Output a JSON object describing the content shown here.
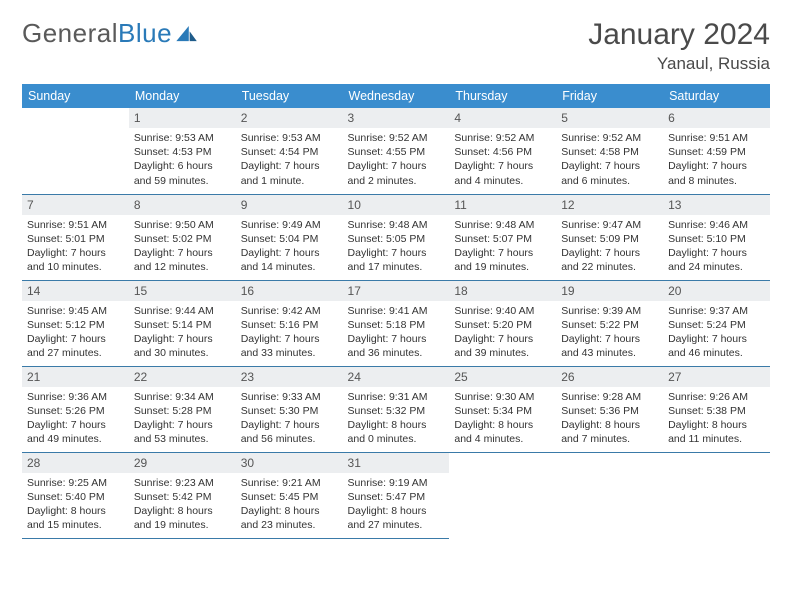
{
  "logo": {
    "text1": "General",
    "text2": "Blue"
  },
  "title": "January 2024",
  "location": "Yanaul, Russia",
  "colors": {
    "header_bg": "#3a8dce",
    "rule": "#3a7aa8",
    "daynum_bg": "#eceef0"
  },
  "weekdays": [
    "Sunday",
    "Monday",
    "Tuesday",
    "Wednesday",
    "Thursday",
    "Friday",
    "Saturday"
  ],
  "weeks": [
    [
      {
        "n": "",
        "sr": "",
        "ss": "",
        "dl": ""
      },
      {
        "n": "1",
        "sr": "Sunrise: 9:53 AM",
        "ss": "Sunset: 4:53 PM",
        "dl": "Daylight: 6 hours and 59 minutes."
      },
      {
        "n": "2",
        "sr": "Sunrise: 9:53 AM",
        "ss": "Sunset: 4:54 PM",
        "dl": "Daylight: 7 hours and 1 minute."
      },
      {
        "n": "3",
        "sr": "Sunrise: 9:52 AM",
        "ss": "Sunset: 4:55 PM",
        "dl": "Daylight: 7 hours and 2 minutes."
      },
      {
        "n": "4",
        "sr": "Sunrise: 9:52 AM",
        "ss": "Sunset: 4:56 PM",
        "dl": "Daylight: 7 hours and 4 minutes."
      },
      {
        "n": "5",
        "sr": "Sunrise: 9:52 AM",
        "ss": "Sunset: 4:58 PM",
        "dl": "Daylight: 7 hours and 6 minutes."
      },
      {
        "n": "6",
        "sr": "Sunrise: 9:51 AM",
        "ss": "Sunset: 4:59 PM",
        "dl": "Daylight: 7 hours and 8 minutes."
      }
    ],
    [
      {
        "n": "7",
        "sr": "Sunrise: 9:51 AM",
        "ss": "Sunset: 5:01 PM",
        "dl": "Daylight: 7 hours and 10 minutes."
      },
      {
        "n": "8",
        "sr": "Sunrise: 9:50 AM",
        "ss": "Sunset: 5:02 PM",
        "dl": "Daylight: 7 hours and 12 minutes."
      },
      {
        "n": "9",
        "sr": "Sunrise: 9:49 AM",
        "ss": "Sunset: 5:04 PM",
        "dl": "Daylight: 7 hours and 14 minutes."
      },
      {
        "n": "10",
        "sr": "Sunrise: 9:48 AM",
        "ss": "Sunset: 5:05 PM",
        "dl": "Daylight: 7 hours and 17 minutes."
      },
      {
        "n": "11",
        "sr": "Sunrise: 9:48 AM",
        "ss": "Sunset: 5:07 PM",
        "dl": "Daylight: 7 hours and 19 minutes."
      },
      {
        "n": "12",
        "sr": "Sunrise: 9:47 AM",
        "ss": "Sunset: 5:09 PM",
        "dl": "Daylight: 7 hours and 22 minutes."
      },
      {
        "n": "13",
        "sr": "Sunrise: 9:46 AM",
        "ss": "Sunset: 5:10 PM",
        "dl": "Daylight: 7 hours and 24 minutes."
      }
    ],
    [
      {
        "n": "14",
        "sr": "Sunrise: 9:45 AM",
        "ss": "Sunset: 5:12 PM",
        "dl": "Daylight: 7 hours and 27 minutes."
      },
      {
        "n": "15",
        "sr": "Sunrise: 9:44 AM",
        "ss": "Sunset: 5:14 PM",
        "dl": "Daylight: 7 hours and 30 minutes."
      },
      {
        "n": "16",
        "sr": "Sunrise: 9:42 AM",
        "ss": "Sunset: 5:16 PM",
        "dl": "Daylight: 7 hours and 33 minutes."
      },
      {
        "n": "17",
        "sr": "Sunrise: 9:41 AM",
        "ss": "Sunset: 5:18 PM",
        "dl": "Daylight: 7 hours and 36 minutes."
      },
      {
        "n": "18",
        "sr": "Sunrise: 9:40 AM",
        "ss": "Sunset: 5:20 PM",
        "dl": "Daylight: 7 hours and 39 minutes."
      },
      {
        "n": "19",
        "sr": "Sunrise: 9:39 AM",
        "ss": "Sunset: 5:22 PM",
        "dl": "Daylight: 7 hours and 43 minutes."
      },
      {
        "n": "20",
        "sr": "Sunrise: 9:37 AM",
        "ss": "Sunset: 5:24 PM",
        "dl": "Daylight: 7 hours and 46 minutes."
      }
    ],
    [
      {
        "n": "21",
        "sr": "Sunrise: 9:36 AM",
        "ss": "Sunset: 5:26 PM",
        "dl": "Daylight: 7 hours and 49 minutes."
      },
      {
        "n": "22",
        "sr": "Sunrise: 9:34 AM",
        "ss": "Sunset: 5:28 PM",
        "dl": "Daylight: 7 hours and 53 minutes."
      },
      {
        "n": "23",
        "sr": "Sunrise: 9:33 AM",
        "ss": "Sunset: 5:30 PM",
        "dl": "Daylight: 7 hours and 56 minutes."
      },
      {
        "n": "24",
        "sr": "Sunrise: 9:31 AM",
        "ss": "Sunset: 5:32 PM",
        "dl": "Daylight: 8 hours and 0 minutes."
      },
      {
        "n": "25",
        "sr": "Sunrise: 9:30 AM",
        "ss": "Sunset: 5:34 PM",
        "dl": "Daylight: 8 hours and 4 minutes."
      },
      {
        "n": "26",
        "sr": "Sunrise: 9:28 AM",
        "ss": "Sunset: 5:36 PM",
        "dl": "Daylight: 8 hours and 7 minutes."
      },
      {
        "n": "27",
        "sr": "Sunrise: 9:26 AM",
        "ss": "Sunset: 5:38 PM",
        "dl": "Daylight: 8 hours and 11 minutes."
      }
    ],
    [
      {
        "n": "28",
        "sr": "Sunrise: 9:25 AM",
        "ss": "Sunset: 5:40 PM",
        "dl": "Daylight: 8 hours and 15 minutes."
      },
      {
        "n": "29",
        "sr": "Sunrise: 9:23 AM",
        "ss": "Sunset: 5:42 PM",
        "dl": "Daylight: 8 hours and 19 minutes."
      },
      {
        "n": "30",
        "sr": "Sunrise: 9:21 AM",
        "ss": "Sunset: 5:45 PM",
        "dl": "Daylight: 8 hours and 23 minutes."
      },
      {
        "n": "31",
        "sr": "Sunrise: 9:19 AM",
        "ss": "Sunset: 5:47 PM",
        "dl": "Daylight: 8 hours and 27 minutes."
      },
      {
        "n": "",
        "sr": "",
        "ss": "",
        "dl": ""
      },
      {
        "n": "",
        "sr": "",
        "ss": "",
        "dl": ""
      },
      {
        "n": "",
        "sr": "",
        "ss": "",
        "dl": ""
      }
    ]
  ]
}
